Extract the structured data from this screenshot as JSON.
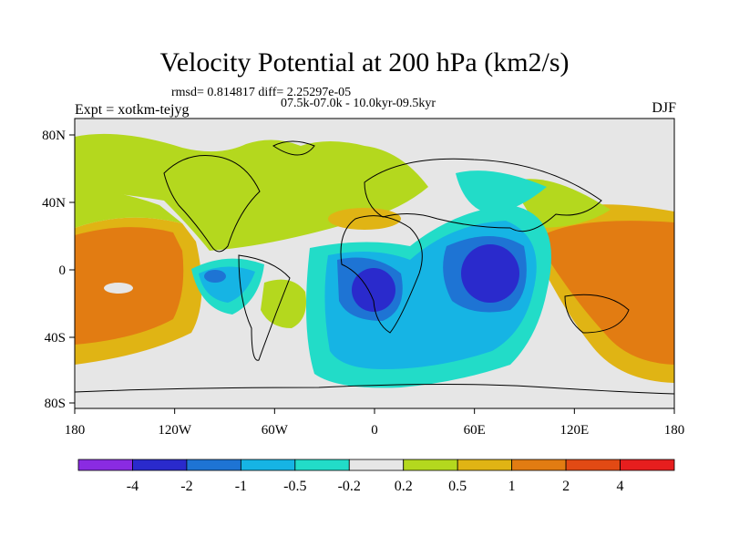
{
  "title": "Velocity Potential at 200 hPa (km2/s)",
  "stats": "rmsd= 0.814817 diff= 2.25297e-05",
  "expt": "Expt = xotkm-tejyg",
  "period": "07.5k-07.0k - 10.0kyr-09.5kyr",
  "season": "DJF",
  "axes": {
    "lon_ticks": [
      "180",
      "120W",
      "60W",
      "0",
      "60E",
      "120E",
      "180"
    ],
    "lat_ticks": [
      "80N",
      "40N",
      "0",
      "40S",
      "80S"
    ]
  },
  "colorbar": {
    "labels": [
      "-4",
      "-2",
      "-1",
      "-0.5",
      "-0.2",
      "0.2",
      "0.5",
      "1",
      "2",
      "4"
    ],
    "colors": [
      "#8a2be2",
      "#2a2acc",
      "#1e74d4",
      "#16b4e4",
      "#22dcc8",
      "#e6e6e6",
      "#b4d81e",
      "#e0b414",
      "#e27c12",
      "#e24a14",
      "#e61e1e"
    ]
  }
}
